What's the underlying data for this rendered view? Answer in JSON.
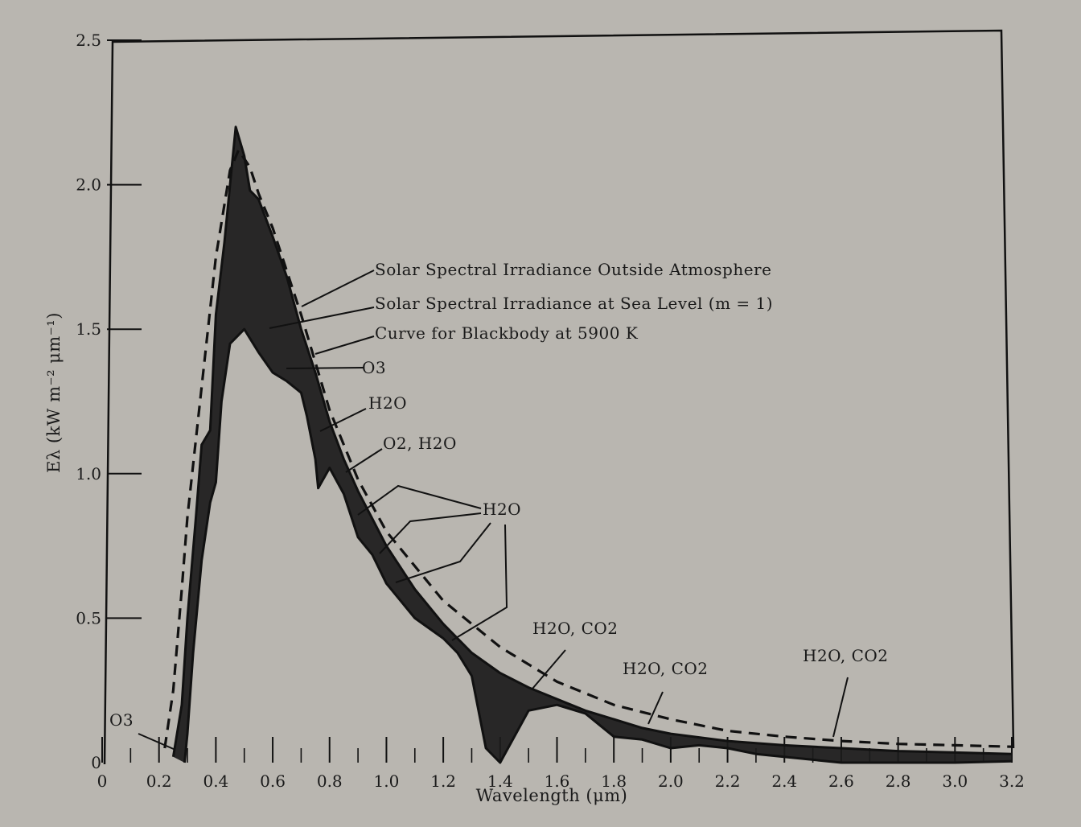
{
  "chart_data": {
    "type": "line",
    "xlabel": "Wavelength (μm)",
    "ylabel": "Eλ (kW m⁻² μm⁻¹)",
    "xlim": [
      0,
      3.2
    ],
    "ylim": [
      0,
      2.5
    ],
    "x_ticks": [
      "0",
      "0.2",
      "0.4",
      "0.6",
      "0.8",
      "1.0",
      "1.2",
      "1.4",
      "1.6",
      "1.8",
      "2.0",
      "2.2",
      "2.4",
      "2.6",
      "2.8",
      "3.0",
      "3.2"
    ],
    "y_ticks": [
      "0",
      "0.5",
      "1.0",
      "1.5",
      "2.0",
      "2.5"
    ],
    "series": [
      {
        "name": "Solar Spectral Irradiance Outside Atmosphere",
        "style": "solid",
        "points": [
          [
            0.25,
            0.02
          ],
          [
            0.28,
            0.2
          ],
          [
            0.3,
            0.5
          ],
          [
            0.33,
            0.85
          ],
          [
            0.35,
            1.1
          ],
          [
            0.38,
            1.15
          ],
          [
            0.4,
            1.55
          ],
          [
            0.43,
            1.8
          ],
          [
            0.45,
            2.0
          ],
          [
            0.47,
            2.2
          ],
          [
            0.5,
            2.1
          ],
          [
            0.52,
            1.98
          ],
          [
            0.55,
            1.95
          ],
          [
            0.6,
            1.82
          ],
          [
            0.65,
            1.68
          ],
          [
            0.7,
            1.5
          ],
          [
            0.75,
            1.35
          ],
          [
            0.8,
            1.18
          ],
          [
            0.85,
            1.05
          ],
          [
            0.9,
            0.94
          ],
          [
            1.0,
            0.75
          ],
          [
            1.1,
            0.6
          ],
          [
            1.2,
            0.48
          ],
          [
            1.3,
            0.38
          ],
          [
            1.4,
            0.31
          ],
          [
            1.5,
            0.26
          ],
          [
            1.6,
            0.22
          ],
          [
            1.7,
            0.18
          ],
          [
            1.8,
            0.15
          ],
          [
            1.9,
            0.12
          ],
          [
            2.0,
            0.1
          ],
          [
            2.2,
            0.075
          ],
          [
            2.4,
            0.06
          ],
          [
            2.6,
            0.05
          ],
          [
            2.8,
            0.04
          ],
          [
            3.0,
            0.035
          ],
          [
            3.2,
            0.03
          ]
        ]
      },
      {
        "name": "Solar Spectral Irradiance at Sea Level (m = 1)",
        "style": "solid",
        "points": [
          [
            0.29,
            0.0
          ],
          [
            0.3,
            0.1
          ],
          [
            0.32,
            0.38
          ],
          [
            0.35,
            0.7
          ],
          [
            0.38,
            0.9
          ],
          [
            0.4,
            0.97
          ],
          [
            0.42,
            1.25
          ],
          [
            0.45,
            1.45
          ],
          [
            0.5,
            1.5
          ],
          [
            0.55,
            1.42
          ],
          [
            0.6,
            1.35
          ],
          [
            0.65,
            1.32
          ],
          [
            0.7,
            1.28
          ],
          [
            0.72,
            1.2
          ],
          [
            0.75,
            1.05
          ],
          [
            0.76,
            0.95
          ],
          [
            0.8,
            1.02
          ],
          [
            0.85,
            0.93
          ],
          [
            0.9,
            0.78
          ],
          [
            0.95,
            0.72
          ],
          [
            1.0,
            0.62
          ],
          [
            1.05,
            0.56
          ],
          [
            1.1,
            0.5
          ],
          [
            1.2,
            0.43
          ],
          [
            1.25,
            0.38
          ],
          [
            1.3,
            0.3
          ],
          [
            1.35,
            0.05
          ],
          [
            1.4,
            0.0
          ],
          [
            1.5,
            0.18
          ],
          [
            1.6,
            0.2
          ],
          [
            1.7,
            0.17
          ],
          [
            1.8,
            0.09
          ],
          [
            1.9,
            0.08
          ],
          [
            2.0,
            0.05
          ],
          [
            2.1,
            0.06
          ],
          [
            2.2,
            0.05
          ],
          [
            2.3,
            0.03
          ],
          [
            2.5,
            0.01
          ],
          [
            2.6,
            0.0
          ],
          [
            3.0,
            0.0
          ],
          [
            3.2,
            0.005
          ]
        ]
      },
      {
        "name": "Curve for Blackbody at 5900 K",
        "style": "dashed",
        "points": [
          [
            0.22,
            0.05
          ],
          [
            0.25,
            0.25
          ],
          [
            0.28,
            0.6
          ],
          [
            0.3,
            0.85
          ],
          [
            0.35,
            1.3
          ],
          [
            0.4,
            1.75
          ],
          [
            0.45,
            2.05
          ],
          [
            0.48,
            2.12
          ],
          [
            0.52,
            2.06
          ],
          [
            0.55,
            1.97
          ],
          [
            0.6,
            1.85
          ],
          [
            0.7,
            1.55
          ],
          [
            0.8,
            1.22
          ],
          [
            0.9,
            0.98
          ],
          [
            1.0,
            0.8
          ],
          [
            1.2,
            0.56
          ],
          [
            1.4,
            0.4
          ],
          [
            1.6,
            0.28
          ],
          [
            1.8,
            0.2
          ],
          [
            2.0,
            0.15
          ],
          [
            2.2,
            0.11
          ],
          [
            2.4,
            0.09
          ],
          [
            2.6,
            0.075
          ],
          [
            2.8,
            0.065
          ],
          [
            3.0,
            0.06
          ],
          [
            3.2,
            0.055
          ]
        ]
      }
    ],
    "annotations": {
      "outside": "Solar Spectral Irradiance Outside Atmosphere",
      "sea_level": "Solar Spectral Irradiance at Sea Level (m = 1)",
      "blackbody": "Curve for Blackbody at 5900 K",
      "o3_upper": "O3",
      "h2o_1": "H2O",
      "o2_h2o": "O2, H2O",
      "h2o_2": "H2O",
      "h2o_co2_1": "H2O, CO2",
      "h2o_co2_2": "H2O, CO2",
      "h2o_co2_3": "H2O, CO2",
      "o3_lower": "O3"
    }
  }
}
